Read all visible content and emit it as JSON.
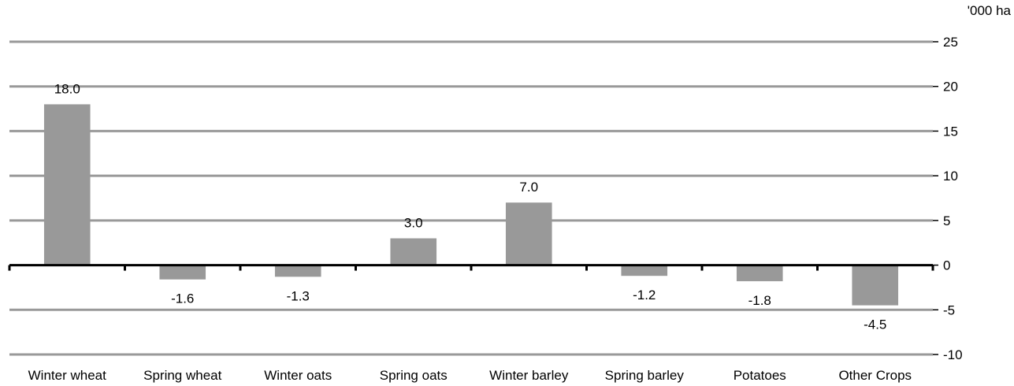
{
  "chart_data": {
    "type": "bar",
    "title": "",
    "xlabel": "",
    "ylabel": "",
    "unit_label": "'000 ha",
    "categories": [
      "Winter wheat",
      "Spring wheat",
      "Winter oats",
      "Spring oats",
      "Winter barley",
      "Spring barley",
      "Potatoes",
      "Other Crops"
    ],
    "values": [
      18.0,
      -1.6,
      -1.3,
      3.0,
      7.0,
      -1.2,
      -1.8,
      -4.5
    ],
    "data_labels": [
      "18.0",
      "-1.6",
      "-1.3",
      "3.0",
      "7.0",
      "-1.2",
      "-1.8",
      "-4.5"
    ],
    "ylim": [
      -10,
      25
    ],
    "yticks": [
      25,
      20,
      15,
      10,
      5,
      0,
      -5,
      -10
    ],
    "ytick_labels": [
      "25",
      "20",
      "15",
      "10",
      "5",
      "0",
      "-5",
      "-10"
    ],
    "y_axis_side": "right",
    "grid": true,
    "legend": "none",
    "colors": {
      "bar": "#999999",
      "grid": "#999999",
      "axis": "#000000"
    }
  }
}
